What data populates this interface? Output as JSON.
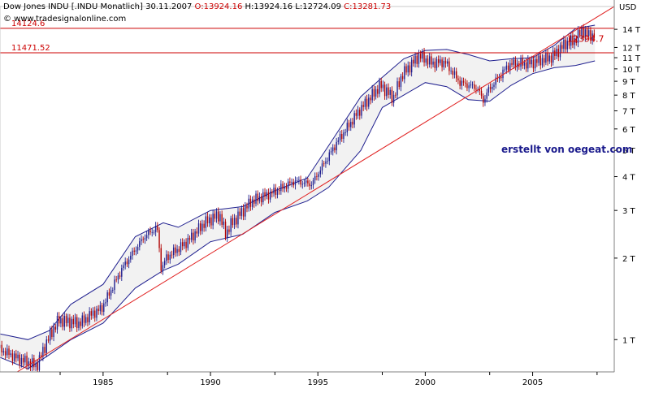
{
  "header": {
    "instrument": "Dow Jones INDU [.INDU  Monatlich]",
    "date": "30.11.2007",
    "open": "O:13924.16",
    "high": "H:13924.16",
    "low": "L:12724.09",
    "close": "C:13281.73",
    "copyright": "© www.tradesignalonline.com",
    "unit": "USD"
  },
  "watermark": "erstellt von oegeat.com",
  "colors": {
    "background": "#ffffff",
    "band_fill": "#f2f2f2",
    "band_line": "#1f1f8f",
    "price_up": "#1f1f8f",
    "price_down": "#b00000",
    "trend_line": "#e02020",
    "level_line": "#cc0000",
    "watermark": "#1a1a8c"
  },
  "chart_data": {
    "type": "candlestick",
    "y_scale": "log",
    "x_range": [
      1980.2,
      2008.8
    ],
    "y_range": [
      760,
      17000
    ],
    "y_ticks": [
      {
        "value": 14000,
        "label": "14 T"
      },
      {
        "value": 12000,
        "label": "12 T"
      },
      {
        "value": 11000,
        "label": "11 T"
      },
      {
        "value": 10000,
        "label": "10 T"
      },
      {
        "value": 9000,
        "label": "9 T"
      },
      {
        "value": 8000,
        "label": "8 T"
      },
      {
        "value": 7000,
        "label": "7 T"
      },
      {
        "value": 6000,
        "label": "6 T"
      },
      {
        "value": 5000,
        "label": "5 T"
      },
      {
        "value": 4000,
        "label": "4 T"
      },
      {
        "value": 3000,
        "label": "3 T"
      },
      {
        "value": 2000,
        "label": "2 T"
      },
      {
        "value": 1000,
        "label": "1 T"
      }
    ],
    "x_ticks": [
      {
        "value": 1985,
        "label": "1985"
      },
      {
        "value": 1990,
        "label": "1990"
      },
      {
        "value": 1995,
        "label": "1995"
      },
      {
        "value": 2000,
        "label": "2000"
      },
      {
        "value": 2005,
        "label": "2005"
      }
    ],
    "x_minor_ticks": [
      1983,
      1988,
      1993,
      1998,
      2003,
      2008
    ],
    "horizontal_levels": [
      {
        "value": 14124.6,
        "label": "14124.6"
      },
      {
        "value": 11471.52,
        "label": "11471.52"
      }
    ],
    "trend_line": {
      "points": [
        [
          1981.0,
          760
        ],
        [
          2008.8,
          17000
        ]
      ],
      "label": "12394.7",
      "label_value": 12394.7
    },
    "price_series": {
      "name": "Dow Jones INDU",
      "points": [
        [
          1980.2,
          930
        ],
        [
          1981.0,
          860
        ],
        [
          1982.0,
          800
        ],
        [
          1982.5,
          1000
        ],
        [
          1983.0,
          1180
        ],
        [
          1984.0,
          1150
        ],
        [
          1984.6,
          1250
        ],
        [
          1985.0,
          1300
        ],
        [
          1986.0,
          1850
        ],
        [
          1987.0,
          2400
        ],
        [
          1987.6,
          2600
        ],
        [
          1987.8,
          1800
        ],
        [
          1988.0,
          2000
        ],
        [
          1989.0,
          2300
        ],
        [
          1989.8,
          2700
        ],
        [
          1990.5,
          2900
        ],
        [
          1990.8,
          2450
        ],
        [
          1991.0,
          2650
        ],
        [
          1992.0,
          3250
        ],
        [
          1993.0,
          3500
        ],
        [
          1994.0,
          3850
        ],
        [
          1994.8,
          3750
        ],
        [
          1995.0,
          4000
        ],
        [
          1996.0,
          5400
        ],
        [
          1997.0,
          7000
        ],
        [
          1998.0,
          8700
        ],
        [
          1998.6,
          7800
        ],
        [
          1999.0,
          9500
        ],
        [
          1999.8,
          11200
        ],
        [
          2000.4,
          10500
        ],
        [
          2001.0,
          10600
        ],
        [
          2001.7,
          8900
        ],
        [
          2002.5,
          8500
        ],
        [
          2002.8,
          7600
        ],
        [
          2003.0,
          8300
        ],
        [
          2003.5,
          9300
        ],
        [
          2004.0,
          10400
        ],
        [
          2005.0,
          10500
        ],
        [
          2006.0,
          11100
        ],
        [
          2006.6,
          12400
        ],
        [
          2007.0,
          12700
        ],
        [
          2007.4,
          13900
        ],
        [
          2007.6,
          13400
        ],
        [
          2007.9,
          13300
        ]
      ]
    },
    "band_upper": {
      "points": [
        [
          1980.2,
          1050
        ],
        [
          1981.5,
          1000
        ],
        [
          1982.5,
          1080
        ],
        [
          1983.5,
          1350
        ],
        [
          1985.0,
          1600
        ],
        [
          1986.5,
          2400
        ],
        [
          1987.8,
          2700
        ],
        [
          1988.5,
          2600
        ],
        [
          1990.0,
          3000
        ],
        [
          1991.5,
          3100
        ],
        [
          1993.0,
          3550
        ],
        [
          1994.5,
          3950
        ],
        [
          1995.5,
          5200
        ],
        [
          1997.0,
          7900
        ],
        [
          1998.0,
          9300
        ],
        [
          1999.0,
          10900
        ],
        [
          2000.0,
          11700
        ],
        [
          2001.0,
          11800
        ],
        [
          2002.0,
          11300
        ],
        [
          2003.0,
          10700
        ],
        [
          2004.0,
          10900
        ],
        [
          2005.0,
          11000
        ],
        [
          2006.0,
          12200
        ],
        [
          2007.0,
          14100
        ],
        [
          2007.9,
          14500
        ]
      ]
    },
    "band_lower": {
      "points": [
        [
          1980.2,
          860
        ],
        [
          1981.5,
          780
        ],
        [
          1982.5,
          880
        ],
        [
          1983.5,
          1000
        ],
        [
          1985.0,
          1150
        ],
        [
          1986.5,
          1550
        ],
        [
          1987.8,
          1800
        ],
        [
          1988.5,
          1900
        ],
        [
          1990.0,
          2300
        ],
        [
          1991.5,
          2450
        ],
        [
          1993.0,
          2950
        ],
        [
          1994.5,
          3250
        ],
        [
          1995.5,
          3650
        ],
        [
          1997.0,
          5000
        ],
        [
          1998.0,
          7200
        ],
        [
          1999.0,
          8000
        ],
        [
          2000.0,
          8900
        ],
        [
          2001.0,
          8600
        ],
        [
          2002.0,
          7700
        ],
        [
          2003.0,
          7600
        ],
        [
          2004.0,
          8700
        ],
        [
          2005.0,
          9600
        ],
        [
          2006.0,
          10100
        ],
        [
          2007.0,
          10300
        ],
        [
          2007.9,
          10700
        ]
      ]
    }
  }
}
